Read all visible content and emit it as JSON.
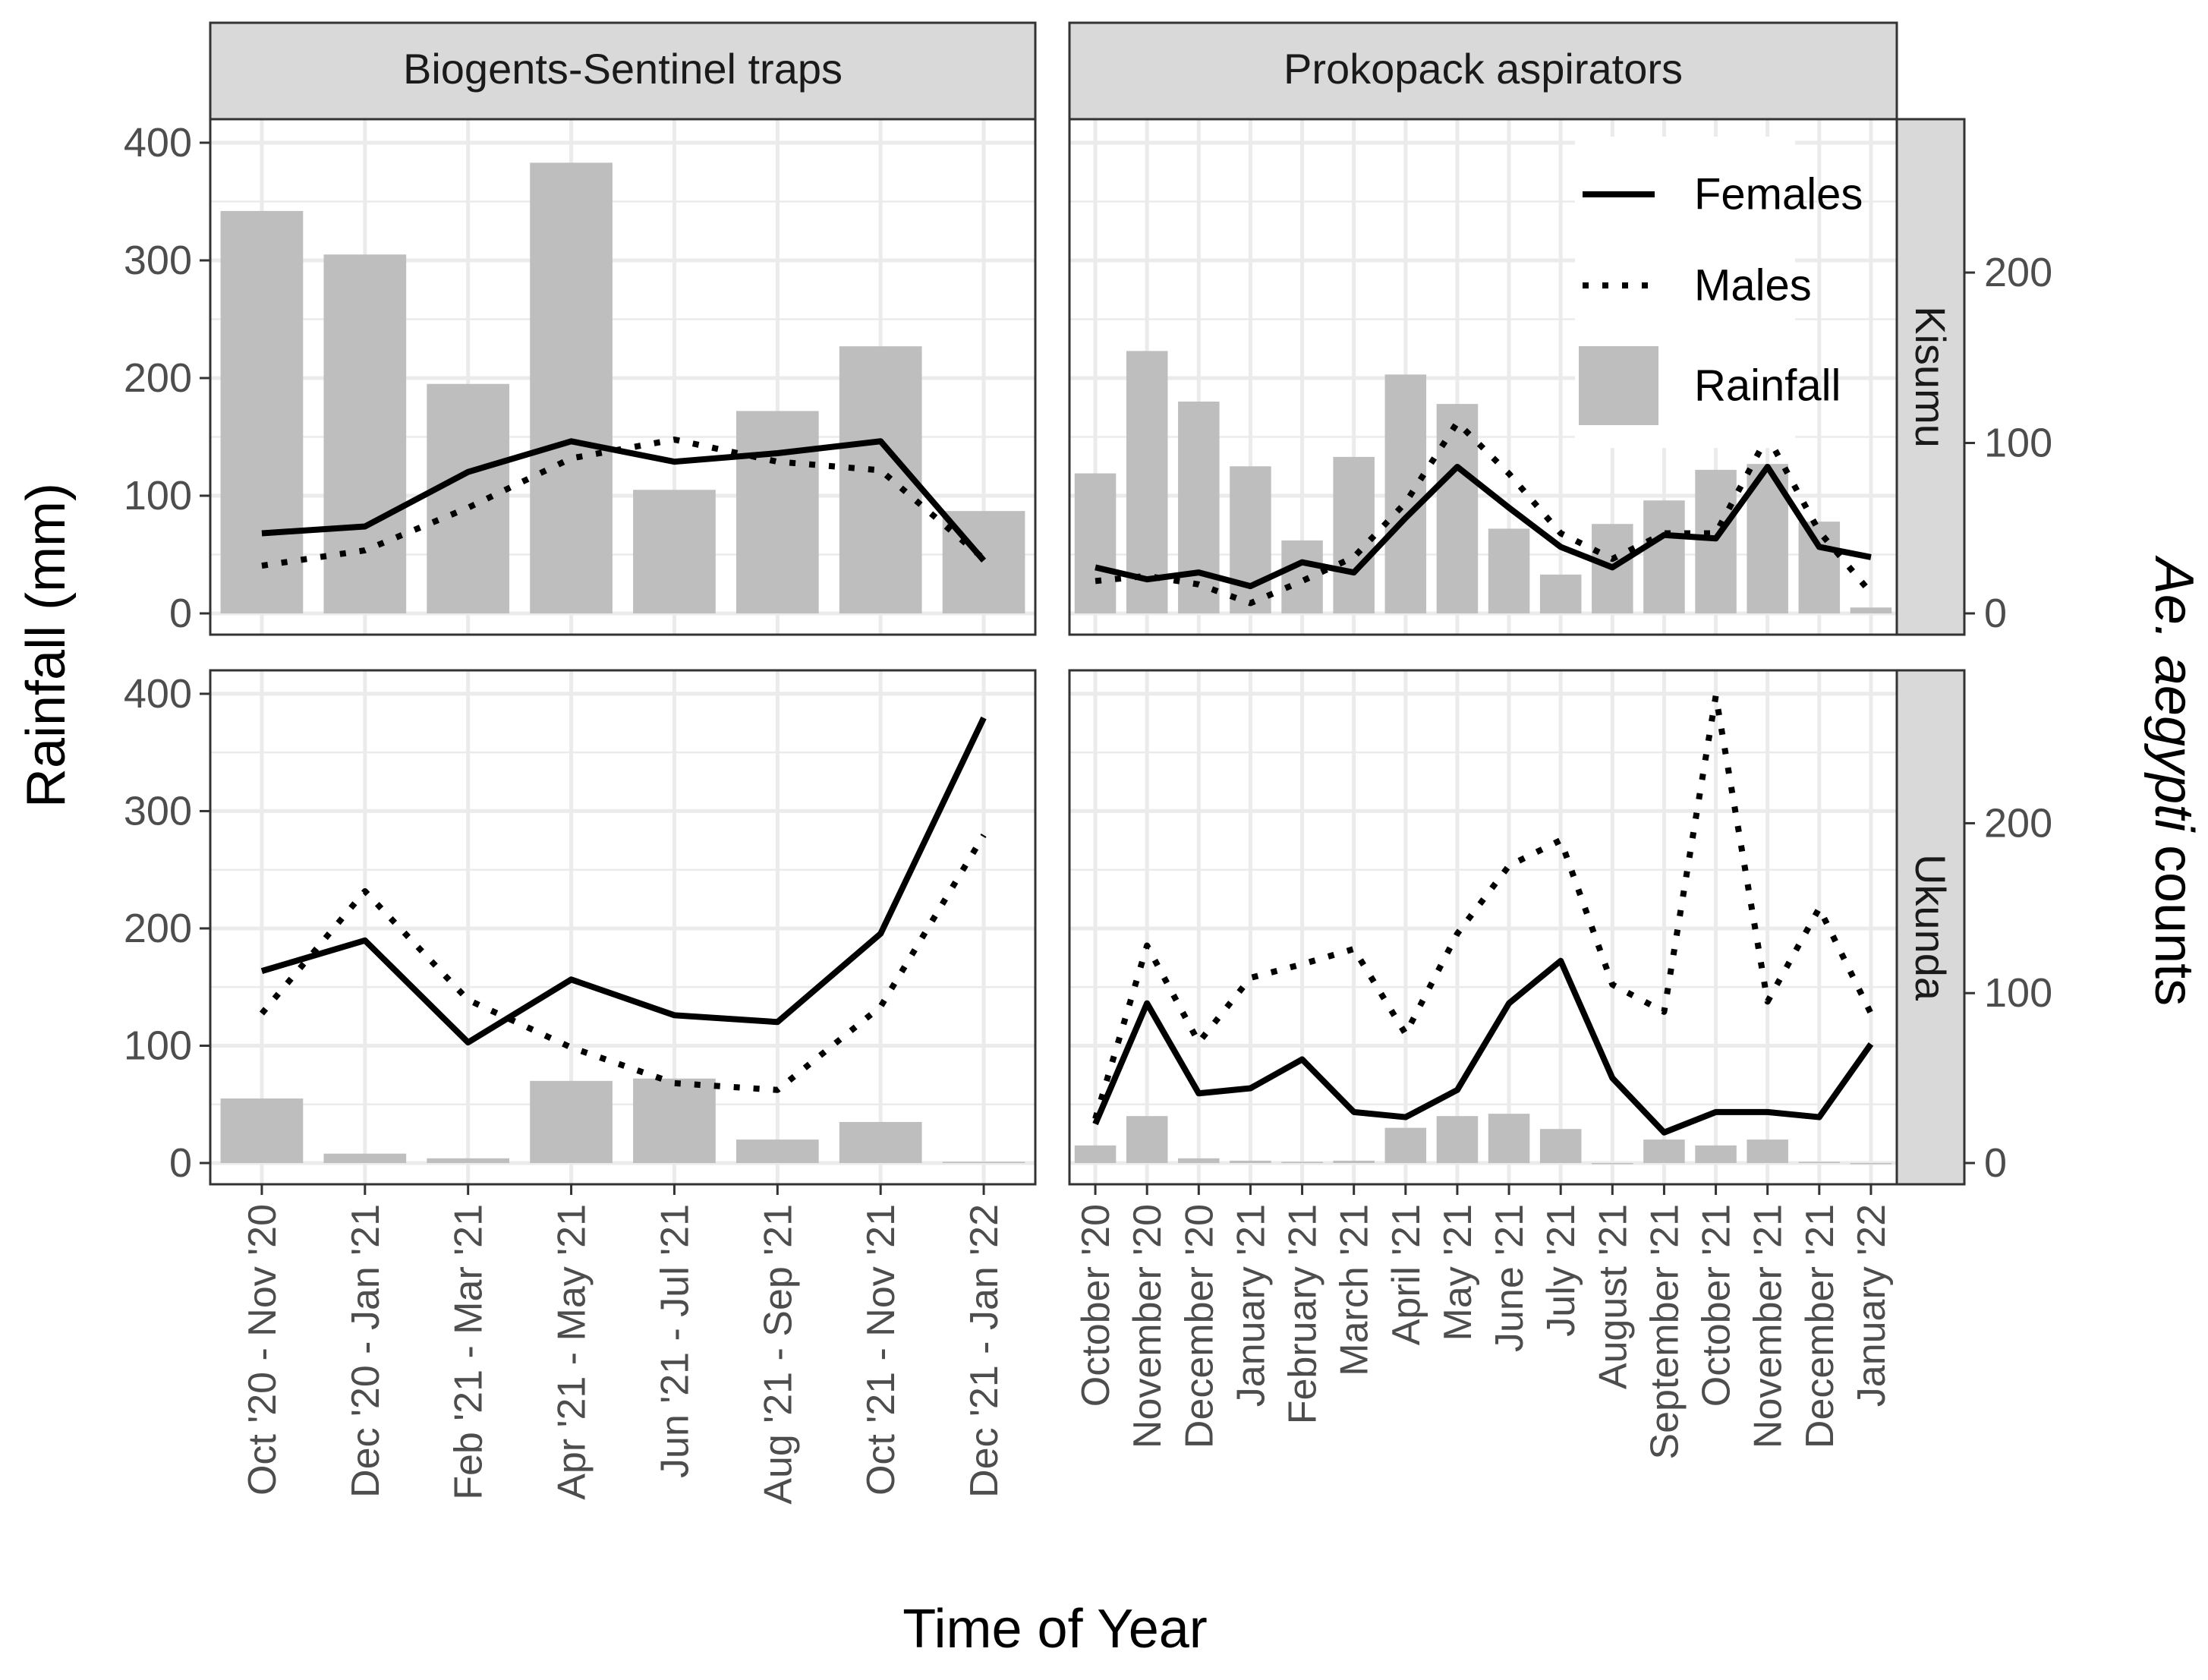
{
  "chart_data": {
    "type": "bar",
    "xlabel": "Time of Year",
    "ylabel_left": "Rainfall (mm)",
    "ylabel_right_prefix": "Ae. aegypti",
    "ylabel_right_suffix": "counts",
    "left_axis": {
      "ylim": [
        0,
        420
      ],
      "ticks": [
        0,
        100,
        200,
        300,
        400
      ]
    },
    "right_axis": {
      "ylim": [
        0,
        290
      ],
      "ticks": [
        0,
        100,
        200
      ]
    },
    "grid": true,
    "legend": {
      "placement": "top-right",
      "entries": [
        {
          "label": "Females",
          "style": "solid"
        },
        {
          "label": "Males",
          "style": "dotted"
        },
        {
          "label": "Rainfall",
          "style": "bar"
        }
      ]
    },
    "colors": {
      "rainfall": "#bebebe",
      "lines": "#000000",
      "strip": "#d9d9d9",
      "grid": "#ebebeb",
      "text": "#4d4d4d"
    },
    "columns": [
      {
        "strip": "Biogents-Sentinel traps",
        "categories": [
          "Oct '20 - Nov '20",
          "Dec '20 - Jan '21",
          "Feb '21 - Mar '21",
          "Apr '21 - May '21",
          "Jun '21 - Jul '21",
          "Aug '21 - Sep '21",
          "Oct '21 - Nov '21",
          "Dec '21 - Jan '22"
        ]
      },
      {
        "strip": "Prokopack aspirators",
        "categories": [
          "October '20",
          "November '20",
          "December '20",
          "January '21",
          "February '21",
          "March '21",
          "April '21",
          "May '21",
          "June '21",
          "July '21",
          "August '21",
          "September '21",
          "October '21",
          "November '21",
          "December '21",
          "January '22"
        ]
      }
    ],
    "rows": [
      {
        "strip": "Kisumu",
        "panels": [
          {
            "rainfall": [
              342,
              305,
              195,
              383,
              105,
              172,
              227,
              87
            ],
            "females": [
              47,
              51,
              83,
              101,
              89,
              94,
              101,
              31
            ],
            "males": [
              28,
              37,
              62,
              91,
              102,
              89,
              84,
              32
            ]
          },
          {
            "rainfall": [
              119,
              223,
              180,
              125,
              62,
              133,
              203,
              178,
              72,
              33,
              76,
              96,
              122,
              127,
              78,
              5
            ],
            "females": [
              27,
              20,
              24,
              16,
              30,
              24,
              56,
              86,
              62,
              39,
              27,
              46,
              44,
              86,
              39,
              33
            ],
            "males": [
              19,
              22,
              17,
              6,
              19,
              33,
              65,
              112,
              82,
              47,
              32,
              47,
              47,
              104,
              48,
              12
            ]
          }
        ]
      },
      {
        "strip": "Ukunda",
        "panels": [
          {
            "rainfall": [
              55,
              8,
              4,
              70,
              72,
              20,
              35,
              1
            ],
            "females": [
              113,
              131,
              71,
              108,
              87,
              83,
              135,
              262
            ],
            "males": [
              88,
              160,
              96,
              68,
              47,
              43,
              92,
              193
            ]
          },
          {
            "rainfall": [
              15,
              40,
              4,
              2,
              1,
              2,
              30,
              40,
              42,
              29,
              0,
              20,
              15,
              20,
              1,
              0
            ],
            "females": [
              23,
              94,
              41,
              44,
              61,
              30,
              27,
              43,
              94,
              119,
              50,
              18,
              30,
              30,
              27,
              70
            ],
            "males": [
              26,
              128,
              71,
              109,
              117,
              126,
              76,
              135,
              175,
              190,
              105,
              89,
              275,
              95,
              150,
              88
            ]
          }
        ]
      }
    ]
  }
}
